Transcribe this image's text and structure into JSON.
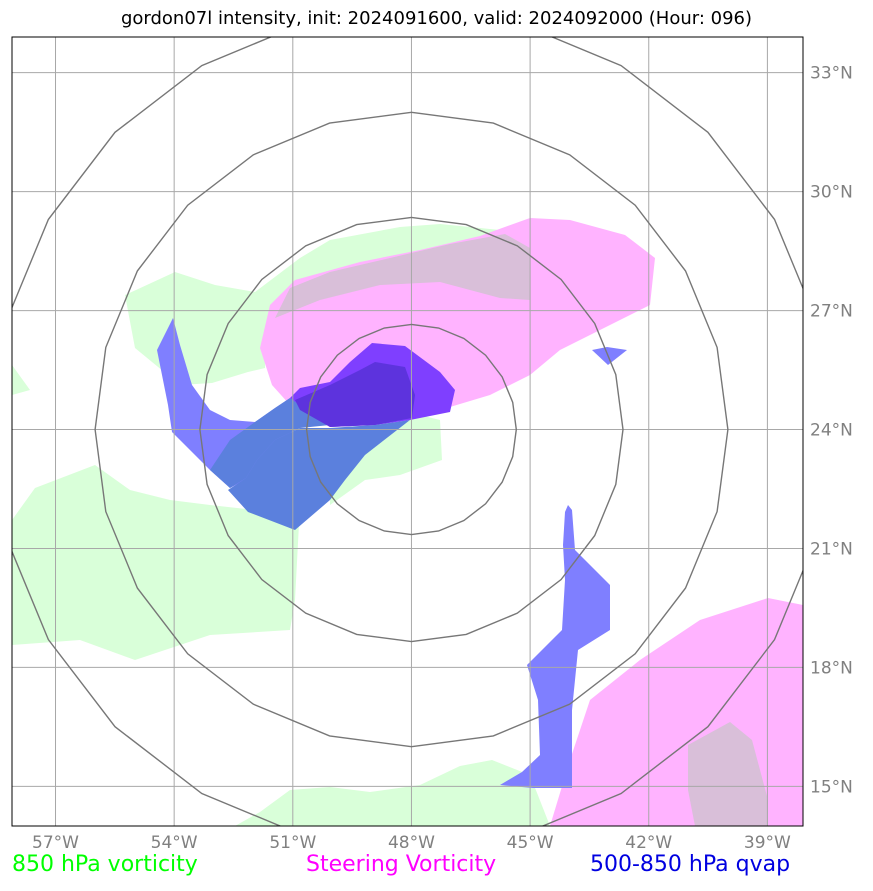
{
  "title": "gordon07l intensity, init: 2024091600, valid: 2024092000 (Hour: 096)",
  "map": {
    "extent": {
      "lon": [
        -58.1,
        -38.1
      ],
      "lat": [
        14.0,
        33.9
      ]
    },
    "longitude_ticks": [
      {
        "value": -57,
        "label": "57°W"
      },
      {
        "value": -54,
        "label": "54°W"
      },
      {
        "value": -51,
        "label": "51°W"
      },
      {
        "value": -48,
        "label": "48°W"
      },
      {
        "value": -45,
        "label": "45°W"
      },
      {
        "value": -42,
        "label": "42°W"
      },
      {
        "value": -39,
        "label": "39°W"
      }
    ],
    "latitude_ticks": [
      {
        "value": 33,
        "label": "33°N"
      },
      {
        "value": 30,
        "label": "30°N"
      },
      {
        "value": 27,
        "label": "27°N"
      },
      {
        "value": 24,
        "label": "24°N"
      },
      {
        "value": 21,
        "label": "21°N"
      },
      {
        "value": 18,
        "label": "18°N"
      },
      {
        "value": 15,
        "label": "15°N"
      }
    ],
    "grid": true,
    "range_rings": {
      "center": {
        "lon": -48.0,
        "lat": 24.0
      },
      "radii_deg": [
        2.65,
        5.35,
        8.0,
        10.6
      ]
    },
    "colors": {
      "vort850": "#d9ffd9",
      "steering": "#ffb3ff",
      "overlap_green_pink": "#d9bfd9",
      "qvap": "#7f7fff",
      "qvap_on_green": "#5b80dd",
      "qvap_on_pink": "#7f3fff",
      "qvap_on_both": "#5d33dd",
      "ring": "#777777",
      "gridline": "#a8a8a8"
    }
  },
  "legend": [
    {
      "label": "850 hPa vorticity",
      "color": "#00ff00"
    },
    {
      "label": "Steering Vorticity",
      "color": "#ff00ff"
    },
    {
      "label": "500-850 hPa qvap",
      "color": "#0000e0"
    }
  ]
}
